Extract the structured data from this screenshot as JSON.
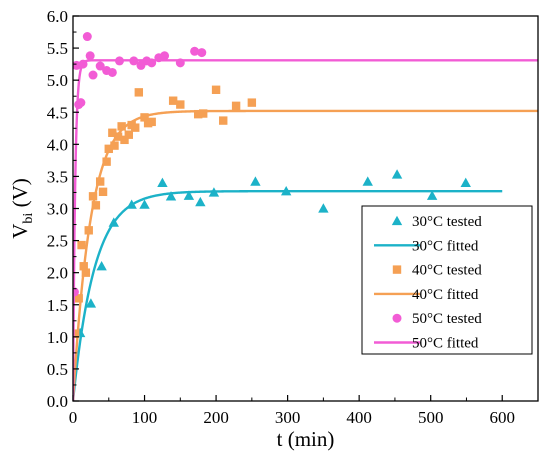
{
  "chart_data": {
    "type": "scatter",
    "title": "",
    "xlabel": "t (min)",
    "ylabel": {
      "main": "V",
      "sub": "bi",
      "unit": " (V)"
    },
    "xlim": [
      0,
      650
    ],
    "ylim": [
      0.0,
      6.0
    ],
    "xticks": [
      0,
      100,
      200,
      300,
      400,
      500,
      600
    ],
    "yticks": [
      0.0,
      0.5,
      1.0,
      1.5,
      2.0,
      2.5,
      3.0,
      3.5,
      4.0,
      4.5,
      5.0,
      5.5,
      6.0
    ],
    "ytick_labels": [
      "0.0",
      "0.5",
      "1.0",
      "1.5",
      "2.0",
      "2.5",
      "3.0",
      "3.5",
      "4.0",
      "4.5",
      "5.0",
      "5.5",
      "6.0"
    ],
    "grid": false,
    "legend_position": "lower-right",
    "series": [
      {
        "name": "30°C tested",
        "kind": "scatter",
        "marker": "triangle",
        "color": "#1cb2c8",
        "x": [
          10,
          25,
          40,
          57,
          82,
          100,
          125,
          137,
          162,
          178,
          197,
          255,
          298,
          350,
          412,
          453,
          502,
          549
        ],
        "y": [
          1.06,
          1.52,
          2.1,
          2.78,
          3.06,
          3.06,
          3.4,
          3.19,
          3.2,
          3.1,
          3.25,
          3.42,
          3.27,
          3.0,
          3.42,
          3.53,
          3.2,
          3.4
        ]
      },
      {
        "name": "30°C fitted",
        "kind": "line",
        "color": "#1cb2c8",
        "model": {
          "type": "exp_rise",
          "y0": 0.0,
          "ymax": 3.27,
          "tau": 30,
          "x_end": 600
        }
      },
      {
        "name": "40°C tested",
        "kind": "scatter",
        "marker": "square",
        "color": "#f5a054",
        "x": [
          3,
          8,
          12,
          15,
          18,
          22,
          28,
          32,
          38,
          42,
          47,
          50,
          55,
          58,
          63,
          68,
          72,
          78,
          82,
          87,
          92,
          100,
          105,
          110,
          140,
          150,
          175,
          182,
          200,
          210,
          228,
          250
        ],
        "y": [
          1.05,
          1.6,
          2.43,
          2.1,
          2.0,
          2.66,
          3.19,
          3.05,
          3.42,
          3.26,
          3.73,
          3.93,
          4.18,
          3.98,
          4.12,
          4.28,
          4.07,
          4.15,
          4.3,
          4.26,
          4.81,
          4.42,
          4.33,
          4.35,
          4.68,
          4.62,
          4.47,
          4.48,
          4.85,
          4.37,
          4.6,
          4.65
        ]
      },
      {
        "name": "40°C fitted",
        "kind": "line",
        "color": "#f5a054",
        "model": {
          "type": "exp_rise",
          "y0": 0.0,
          "ymax": 4.52,
          "tau": 25,
          "x_end": 650
        }
      },
      {
        "name": "50°C tested",
        "kind": "scatter",
        "marker": "circle",
        "color": "#f25cd5",
        "x": [
          2,
          5,
          8,
          11,
          14,
          20,
          24,
          28,
          38,
          47,
          55,
          65,
          85,
          95,
          103,
          110,
          120,
          128,
          150,
          170,
          180
        ],
        "y": [
          1.7,
          5.23,
          4.62,
          4.65,
          5.25,
          5.68,
          5.38,
          5.08,
          5.22,
          5.15,
          5.12,
          5.3,
          5.3,
          5.23,
          5.3,
          5.27,
          5.35,
          5.38,
          5.27,
          5.45,
          5.43
        ]
      },
      {
        "name": "50°C fitted",
        "kind": "line",
        "color": "#f25cd5",
        "model": {
          "type": "exp_rise",
          "y0": 0.0,
          "ymax": 5.31,
          "tau": 3,
          "x_end": 650
        }
      }
    ]
  }
}
